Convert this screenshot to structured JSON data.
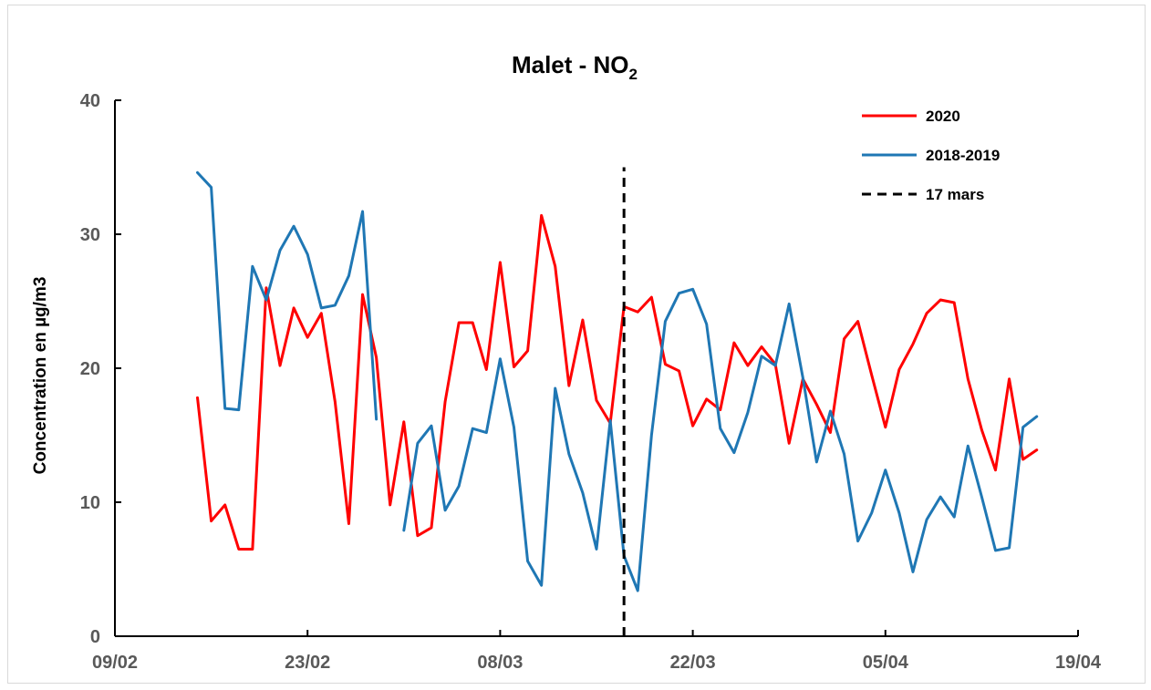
{
  "chart_data": {
    "type": "line",
    "title": "Malet - NO",
    "title_subscript": "2",
    "xlabel": "",
    "ylabel": "Concentration en µg/m3",
    "ylim": [
      0,
      40
    ],
    "yticks": [
      0,
      10,
      20,
      30,
      40
    ],
    "xlim": [
      "2020-02-09",
      "2020-04-19"
    ],
    "xticks": [
      "2020-02-09",
      "2020-02-23",
      "2020-03-08",
      "2020-03-22",
      "2020-04-05",
      "2020-04-19"
    ],
    "xtick_labels": [
      "09/02",
      "23/02",
      "08/03",
      "22/03",
      "05/04",
      "19/04"
    ],
    "grid": false,
    "legend_position": "top-right",
    "series": [
      {
        "name": "2020",
        "color": "#ff0000",
        "style": "solid",
        "start_date": "2020-02-15",
        "values": [
          17.8,
          8.6,
          9.8,
          6.5,
          6.5,
          26.0,
          20.2,
          24.5,
          22.3,
          24.1,
          17.5,
          8.4,
          25.5,
          20.8,
          9.8,
          16.0,
          7.5,
          8.1,
          17.5,
          23.4,
          23.4,
          19.9,
          27.9,
          20.1,
          21.3,
          31.4,
          27.6,
          18.7,
          23.6,
          17.6,
          15.9,
          24.6,
          24.2,
          25.3,
          20.3,
          19.8,
          15.7,
          17.7,
          16.9,
          21.9,
          20.2,
          21.6,
          20.3,
          14.4,
          19.2,
          17.3,
          15.2,
          22.2,
          23.5,
          19.5,
          15.6,
          19.9,
          21.8,
          24.1,
          25.1,
          24.9,
          19.2,
          15.4,
          12.4,
          19.2,
          13.2,
          13.9
        ]
      },
      {
        "name": "2018-2019",
        "color": "#1f77b4",
        "style": "solid",
        "start_date": "2020-02-15",
        "values": [
          34.6,
          33.5,
          17.0,
          16.9,
          27.6,
          25.1,
          28.8,
          30.6,
          28.5,
          24.5,
          24.7,
          26.9,
          31.7,
          16.2,
          null,
          7.9,
          14.4,
          15.7,
          9.4,
          11.2,
          15.5,
          15.2,
          20.7,
          15.6,
          5.6,
          3.8,
          18.5,
          13.6,
          10.7,
          6.5,
          16.1,
          6.0,
          3.4,
          15.0,
          23.5,
          25.6,
          25.9,
          23.3,
          15.5,
          13.7,
          16.7,
          20.9,
          20.2,
          24.8,
          19.3,
          13.0,
          16.8,
          13.6,
          7.1,
          9.2,
          12.4,
          9.2,
          4.8,
          8.7,
          10.4,
          8.9,
          14.2,
          10.4,
          6.4,
          6.6,
          15.6,
          16.4
        ]
      }
    ],
    "annotations": [
      {
        "type": "vline",
        "date": "2020-03-17",
        "label": "17 mars",
        "style": "dashed",
        "color": "#000000",
        "y_top": 35
      }
    ]
  }
}
